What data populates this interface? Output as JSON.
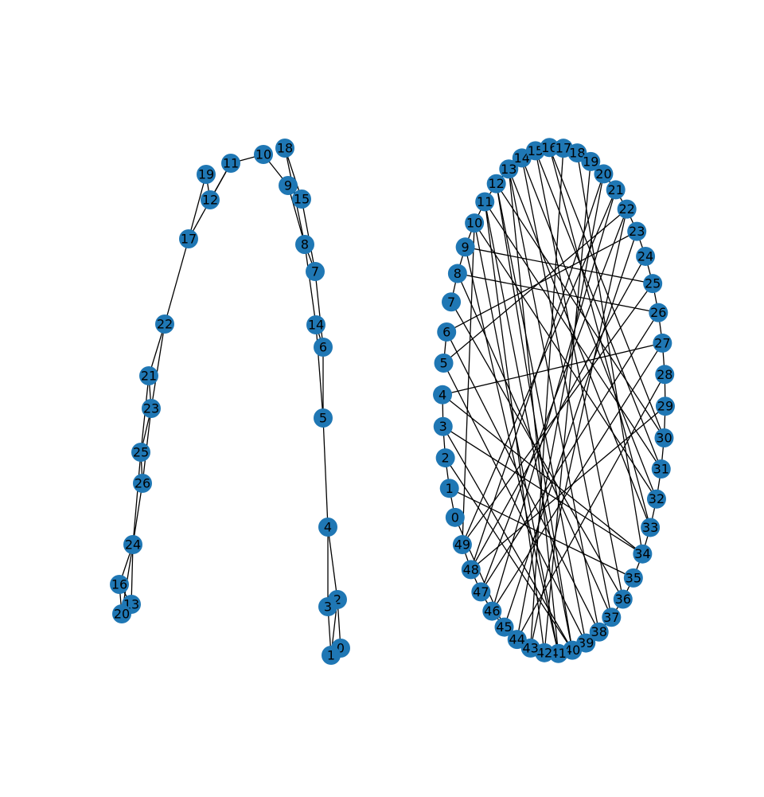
{
  "style": {
    "node_color": "#1f77b4",
    "edge_color": "#000000",
    "label_color": "#000000"
  },
  "graphs": [
    {
      "id": "left",
      "node_labels": [
        "0",
        "1",
        "2",
        "3",
        "4",
        "5",
        "6",
        "7",
        "8",
        "9",
        "10",
        "11",
        "12",
        "13",
        "14",
        "15",
        "16",
        "17",
        "18",
        "19",
        "20",
        "21",
        "22",
        "23",
        "24",
        "25",
        "26"
      ],
      "edges": [
        [
          0,
          2
        ],
        [
          0,
          1
        ],
        [
          1,
          3
        ],
        [
          1,
          2
        ],
        [
          3,
          4
        ],
        [
          2,
          4
        ],
        [
          4,
          5
        ],
        [
          5,
          6
        ],
        [
          5,
          14
        ],
        [
          6,
          7
        ],
        [
          6,
          14
        ],
        [
          14,
          8
        ],
        [
          7,
          8
        ],
        [
          7,
          15
        ],
        [
          8,
          9
        ],
        [
          8,
          18
        ],
        [
          15,
          9
        ],
        [
          15,
          18
        ],
        [
          9,
          10
        ],
        [
          10,
          11
        ],
        [
          11,
          12
        ],
        [
          11,
          17
        ],
        [
          12,
          19
        ],
        [
          17,
          19
        ],
        [
          17,
          22
        ],
        [
          22,
          21
        ],
        [
          22,
          23
        ],
        [
          21,
          23
        ],
        [
          21,
          25
        ],
        [
          23,
          25
        ],
        [
          23,
          26
        ],
        [
          25,
          26
        ],
        [
          26,
          24
        ],
        [
          25,
          24
        ],
        [
          24,
          16
        ],
        [
          24,
          20
        ],
        [
          24,
          13
        ],
        [
          16,
          13
        ],
        [
          16,
          20
        ]
      ]
    },
    {
      "id": "right",
      "node_labels": [
        "0",
        "1",
        "2",
        "3",
        "4",
        "5",
        "6",
        "7",
        "8",
        "9",
        "10",
        "11",
        "12",
        "13",
        "14",
        "15",
        "16",
        "17",
        "18",
        "19",
        "20",
        "21",
        "22",
        "23",
        "24",
        "25",
        "26",
        "27",
        "28",
        "29",
        "30",
        "31",
        "32",
        "33",
        "34",
        "35",
        "36",
        "37",
        "38",
        "39",
        "40",
        "41",
        "42",
        "43",
        "44",
        "45",
        "46",
        "47",
        "48",
        "49"
      ],
      "edges": [
        [
          0,
          1
        ],
        [
          1,
          2
        ],
        [
          3,
          34
        ],
        [
          4,
          34
        ],
        [
          5,
          6
        ],
        [
          7,
          8
        ],
        [
          8,
          9
        ],
        [
          9,
          10
        ],
        [
          10,
          11
        ],
        [
          11,
          12
        ],
        [
          12,
          13
        ],
        [
          13,
          14
        ],
        [
          14,
          15
        ],
        [
          15,
          16
        ],
        [
          16,
          17
        ],
        [
          17,
          18
        ],
        [
          18,
          19
        ],
        [
          19,
          20
        ],
        [
          20,
          21
        ],
        [
          21,
          22
        ],
        [
          22,
          23
        ],
        [
          23,
          24
        ],
        [
          24,
          25
        ],
        [
          25,
          26
        ],
        [
          26,
          27
        ],
        [
          27,
          28
        ],
        [
          28,
          29
        ],
        [
          29,
          30
        ],
        [
          30,
          31
        ],
        [
          31,
          32
        ],
        [
          32,
          33
        ],
        [
          33,
          34
        ],
        [
          34,
          35
        ],
        [
          35,
          36
        ],
        [
          36,
          37
        ],
        [
          37,
          38
        ],
        [
          38,
          39
        ],
        [
          39,
          40
        ],
        [
          40,
          41
        ],
        [
          41,
          42
        ],
        [
          42,
          43
        ],
        [
          43,
          44
        ],
        [
          44,
          45
        ],
        [
          45,
          46
        ],
        [
          46,
          47
        ],
        [
          47,
          48
        ],
        [
          48,
          49
        ],
        [
          0,
          45
        ],
        [
          1,
          35
        ],
        [
          2,
          40
        ],
        [
          10,
          49
        ],
        [
          3,
          4
        ],
        [
          4,
          27
        ],
        [
          5,
          22
        ],
        [
          6,
          23
        ],
        [
          8,
          26
        ],
        [
          9,
          25
        ],
        [
          9,
          41
        ],
        [
          11,
          42
        ],
        [
          12,
          40
        ],
        [
          12,
          39
        ],
        [
          13,
          38
        ],
        [
          13,
          41
        ],
        [
          14,
          37
        ],
        [
          14,
          32
        ],
        [
          15,
          36
        ],
        [
          15,
          31
        ],
        [
          16,
          30
        ],
        [
          16,
          33
        ],
        [
          17,
          43
        ],
        [
          18,
          34
        ],
        [
          19,
          42
        ],
        [
          20,
          44
        ],
        [
          21,
          46
        ],
        [
          22,
          47
        ],
        [
          23,
          45
        ],
        [
          24,
          48
        ],
        [
          25,
          49
        ],
        [
          26,
          47
        ],
        [
          27,
          46
        ],
        [
          28,
          44
        ],
        [
          29,
          48
        ],
        [
          30,
          12
        ],
        [
          31,
          11
        ],
        [
          32,
          10
        ],
        [
          33,
          13
        ],
        [
          36,
          7
        ],
        [
          37,
          8
        ],
        [
          38,
          6
        ],
        [
          39,
          5
        ],
        [
          40,
          3
        ],
        [
          2,
          3
        ],
        [
          20,
          48
        ],
        [
          21,
          49
        ],
        [
          22,
          43
        ],
        [
          10,
          41
        ],
        [
          11,
          40
        ]
      ]
    }
  ]
}
